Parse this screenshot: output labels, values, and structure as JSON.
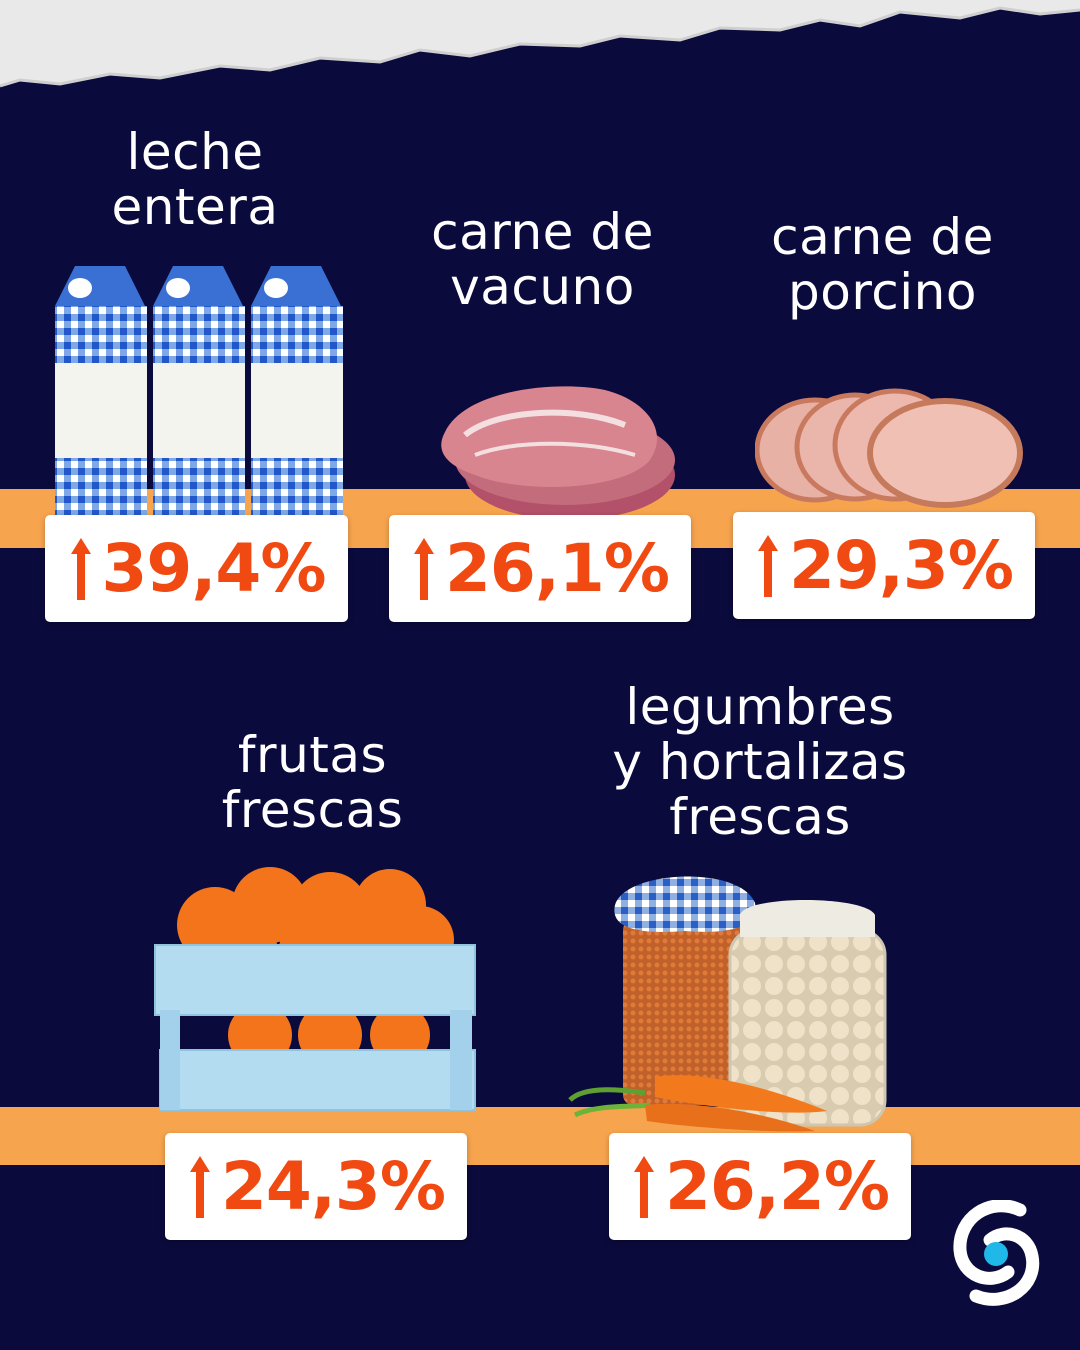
{
  "colors": {
    "background": "#0b0a3c",
    "band": "#f7a44e",
    "percent_text": "#f04a12",
    "label_text": "#ffffff"
  },
  "items": [
    {
      "label": "leche\nentera",
      "change": "39,4%",
      "icon": "milk-cartons-icon"
    },
    {
      "label": "carne de\nvacuno",
      "change": "26,1%",
      "icon": "beef-steak-icon"
    },
    {
      "label": "carne de\nporcino",
      "change": "29,3%",
      "icon": "ham-slices-icon"
    },
    {
      "label": "frutas\nfrescas",
      "change": "24,3%",
      "icon": "orange-crate-icon"
    },
    {
      "label": "legumbres\ny hortalizas\nfrescas",
      "change": "26,2%",
      "icon": "legume-jars-icon"
    }
  ],
  "brand": {
    "icon": "brand-logo-icon"
  }
}
